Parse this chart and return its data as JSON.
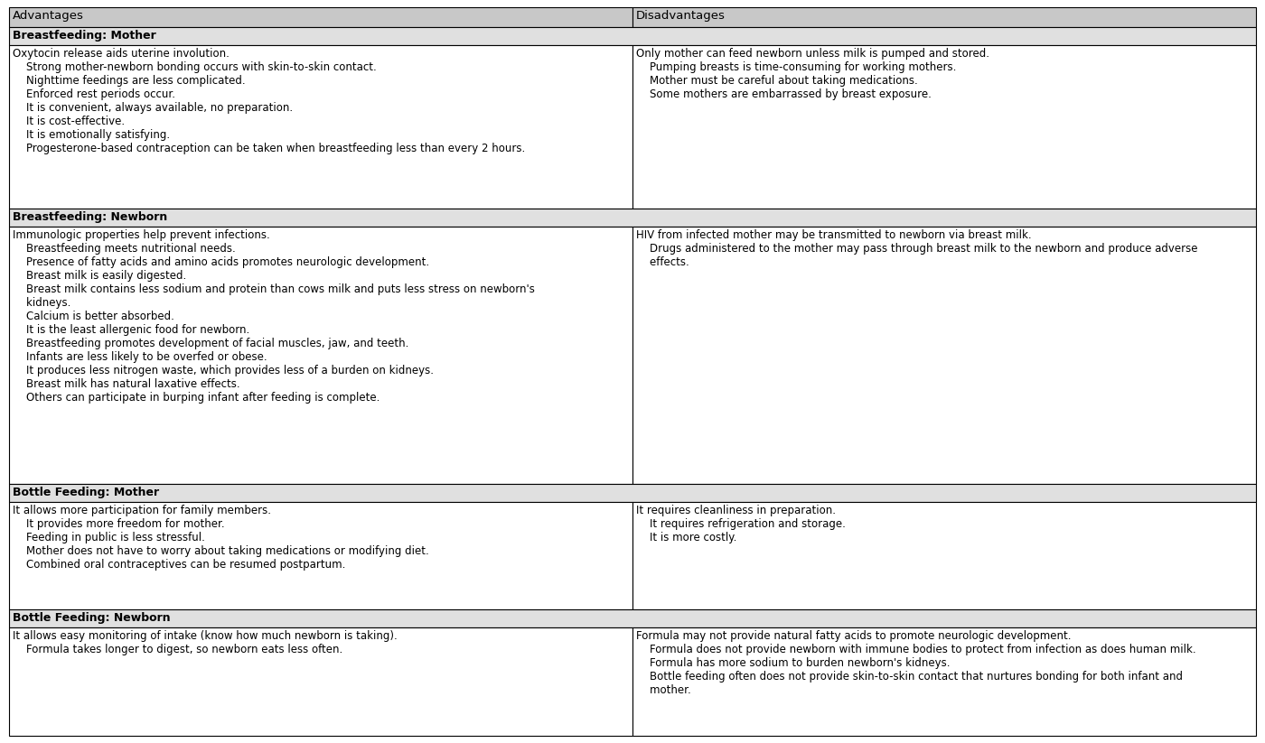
{
  "col_header": [
    "Advantages",
    "Disadvantages"
  ],
  "sections": [
    {
      "section_label": "Breastfeeding: Mother",
      "adv": "Oxytocin release aids uterine involution.\n    Strong mother-newborn bonding occurs with skin-to-skin contact.\n    Nighttime feedings are less complicated.\n    Enforced rest periods occur.\n    It is convenient, always available, no preparation.\n    It is cost-effective.\n    It is emotionally satisfying.\n    Progesterone-based contraception can be taken when breastfeeding less than every 2 hours.",
      "dis": "Only mother can feed newborn unless milk is pumped and stored.\n    Pumping breasts is time-consuming for working mothers.\n    Mother must be careful about taking medications.\n    Some mothers are embarrassed by breast exposure."
    },
    {
      "section_label": "Breastfeeding: Newborn",
      "adv": "Immunologic properties help prevent infections.\n    Breastfeeding meets nutritional needs.\n    Presence of fatty acids and amino acids promotes neurologic development.\n    Breast milk is easily digested.\n    Breast milk contains less sodium and protein than cows milk and puts less stress on newborn's\n    kidneys.\n    Calcium is better absorbed.\n    It is the least allergenic food for newborn.\n    Breastfeeding promotes development of facial muscles, jaw, and teeth.\n    Infants are less likely to be overfed or obese.\n    It produces less nitrogen waste, which provides less of a burden on kidneys.\n    Breast milk has natural laxative effects.\n    Others can participate in burping infant after feeding is complete.",
      "dis": "HIV from infected mother may be transmitted to newborn via breast milk.\n    Drugs administered to the mother may pass through breast milk to the newborn and produce adverse\n    effects."
    },
    {
      "section_label": "Bottle Feeding: Mother",
      "adv": "It allows more participation for family members.\n    It provides more freedom for mother.\n    Feeding in public is less stressful.\n    Mother does not have to worry about taking medications or modifying diet.\n    Combined oral contraceptives can be resumed postpartum.",
      "dis": "It requires cleanliness in preparation.\n    It requires refrigeration and storage.\n    It is more costly."
    },
    {
      "section_label": "Bottle Feeding: Newborn",
      "adv": "It allows easy monitoring of intake (know how much newborn is taking).\n    Formula takes longer to digest, so newborn eats less often.",
      "dis": "Formula may not provide natural fatty acids to promote neurologic development.\n    Formula does not provide newborn with immune bodies to protect from infection as does human milk.\n    Formula has more sodium to burden newborn's kidneys.\n    Bottle feeding often does not provide skin-to-skin contact that nurtures bonding for both infant and\n    mother."
    }
  ],
  "col_split": 0.5,
  "bg_color": "#ffffff",
  "header_bg": "#c8c8c8",
  "section_bg": "#e0e0e0",
  "border_color": "#000000",
  "font_size": 8.5,
  "header_font_size": 9.5,
  "section_font_size": 9.0,
  "fig_width": 14.0,
  "fig_height": 8.23,
  "dpi": 100
}
